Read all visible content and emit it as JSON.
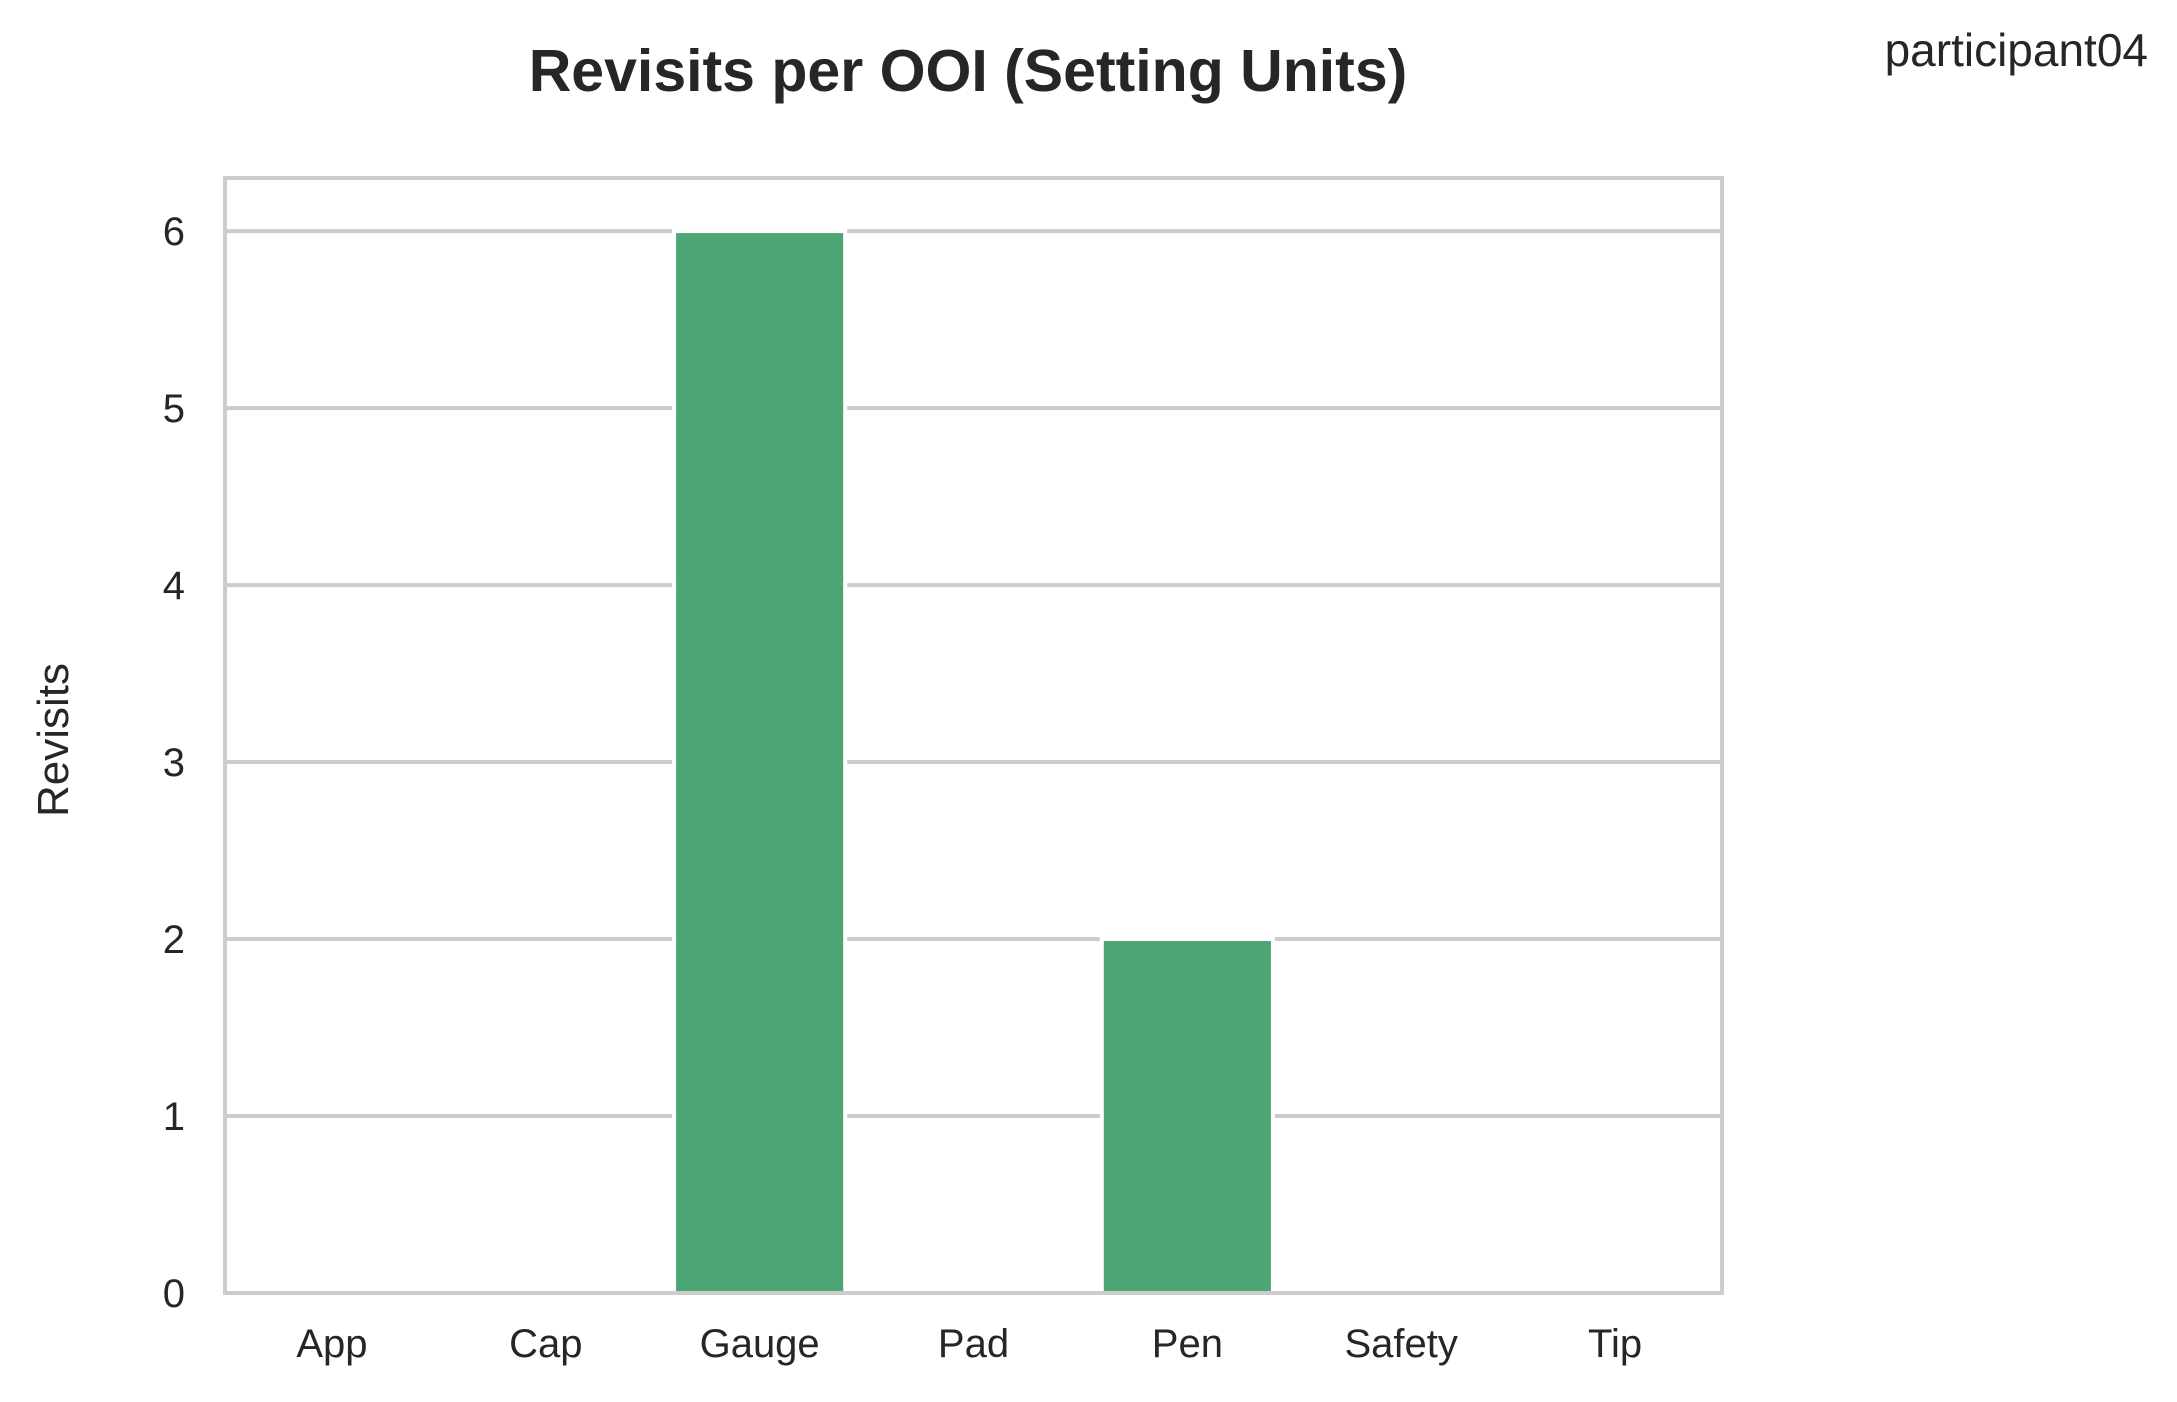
{
  "corner_label": "participant04",
  "colors": {
    "bar": "#4ca574",
    "grid": "#cccccc",
    "frame": "#cccccc",
    "text": "#262626",
    "background": "#ffffff"
  },
  "chart_data": {
    "type": "bar",
    "title": "Revisits per OOI (Setting Units)",
    "xlabel": "",
    "ylabel": "Revisits",
    "categories": [
      "App",
      "Cap",
      "Gauge",
      "Pad",
      "Pen",
      "Safety",
      "Tip"
    ],
    "values": [
      0,
      0,
      6,
      0,
      2,
      0,
      0
    ],
    "yticks": [
      0,
      1,
      2,
      3,
      4,
      5,
      6
    ],
    "ylim": [
      0,
      6.3
    ],
    "grid": "horizontal",
    "legend": "none"
  }
}
